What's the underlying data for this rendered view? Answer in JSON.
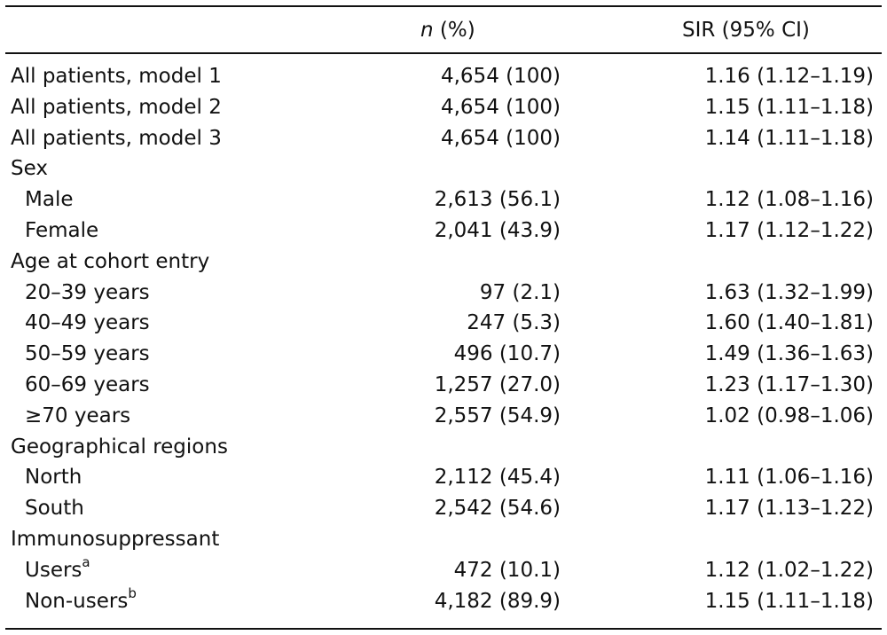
{
  "header": {
    "n_label": "n",
    "n_suffix": " (%)",
    "sir_label": "SIR (95% CI)"
  },
  "rows": [
    {
      "label": "All patients, model 1",
      "indent": false,
      "n": "4,654 (100)",
      "sir": "1.16 (1.12–1.19)"
    },
    {
      "label": "All patients, model 2",
      "indent": false,
      "n": "4,654 (100)",
      "sir": "1.15 (1.11–1.18)"
    },
    {
      "label": "All patients, model 3",
      "indent": false,
      "n": "4,654 (100)",
      "sir": "1.14 (1.11–1.18)"
    },
    {
      "label": "Sex",
      "indent": false,
      "n": "",
      "sir": ""
    },
    {
      "label": "Male",
      "indent": true,
      "n": "2,613 (56.1)",
      "sir": "1.12 (1.08–1.16)"
    },
    {
      "label": "Female",
      "indent": true,
      "n": "2,041 (43.9)",
      "sir": "1.17 (1.12–1.22)"
    },
    {
      "label": "Age at cohort entry",
      "indent": false,
      "n": "",
      "sir": ""
    },
    {
      "label": "20–39 years",
      "indent": true,
      "n": "97 (2.1)",
      "sir": "1.63 (1.32–1.99)"
    },
    {
      "label": "40–49 years",
      "indent": true,
      "n": "247 (5.3)",
      "sir": "1.60 (1.40–1.81)"
    },
    {
      "label": "50–59 years",
      "indent": true,
      "n": "496 (10.7)",
      "sir": "1.49 (1.36–1.63)"
    },
    {
      "label": "60–69 years",
      "indent": true,
      "n": "1,257 (27.0)",
      "sir": "1.23 (1.17–1.30)"
    },
    {
      "label": "≥70 years",
      "indent": true,
      "n": "2,557 (54.9)",
      "sir": "1.02 (0.98–1.06)"
    },
    {
      "label": "Geographical regions",
      "indent": false,
      "n": "",
      "sir": ""
    },
    {
      "label": "North",
      "indent": true,
      "n": "2,112 (45.4)",
      "sir": "1.11 (1.06–1.16)"
    },
    {
      "label": "South",
      "indent": true,
      "n": "2,542 (54.6)",
      "sir": "1.17 (1.13–1.22)"
    },
    {
      "label": "Immunosuppressant",
      "indent": false,
      "n": "",
      "sir": ""
    },
    {
      "label": "Users",
      "sup": "a",
      "indent": true,
      "n": "472 (10.1)",
      "sir": "1.12 (1.02–1.22)"
    },
    {
      "label": "Non-users",
      "sup": "b",
      "indent": true,
      "n": "4,182 (89.9)",
      "sir": "1.15 (1.11–1.18)"
    }
  ]
}
